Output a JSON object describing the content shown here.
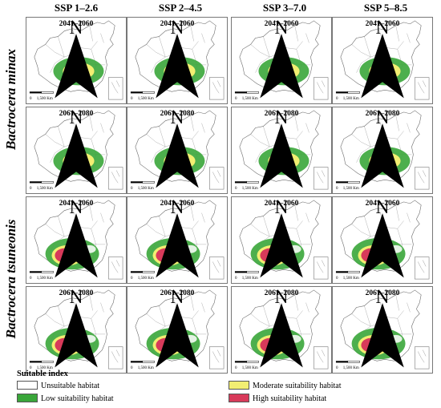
{
  "scenarios": [
    "SSP 1–2.6",
    "SSP 2–4.5",
    "SSP 3–7.0",
    "SSP 5–8.5"
  ],
  "species": [
    "Bactrocera minax",
    "Bactrocera tsuneonis"
  ],
  "periods": [
    "2041–2060",
    "2061–2080"
  ],
  "map_labels": {
    "north": "N",
    "scale_values": "0     1,500",
    "scale_unit": "Km"
  },
  "legend": {
    "title": "Suitable index",
    "items": [
      {
        "label": "Unsuitable habitat",
        "color": "#ffffff"
      },
      {
        "label": "Low suitability habitat",
        "color": "#3aa63a"
      },
      {
        "label": "Moderate suitability habitat",
        "color": "#f2ee72"
      },
      {
        "label": "High suitability habitat",
        "color": "#d83a5a"
      }
    ]
  }
}
